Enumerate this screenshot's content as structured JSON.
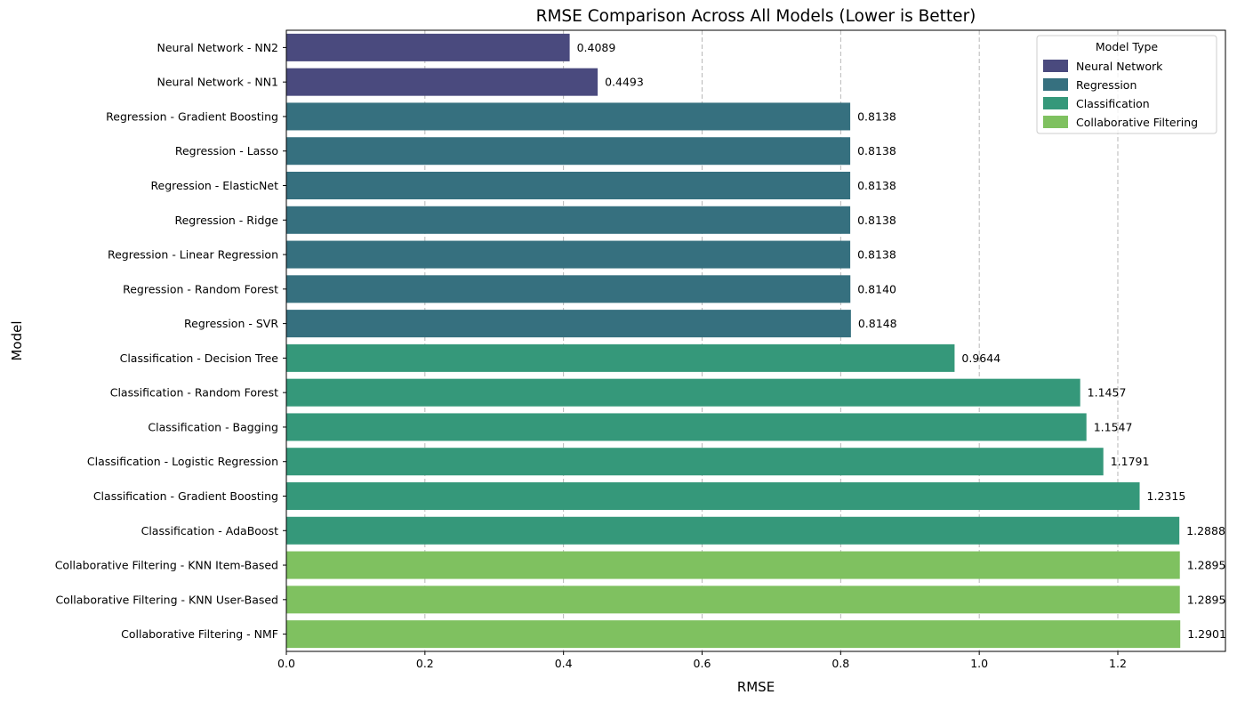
{
  "chart_data": {
    "type": "bar",
    "orientation": "horizontal",
    "title": "RMSE Comparison Across All Models (Lower is Better)",
    "xlabel": "RMSE",
    "ylabel": "Model",
    "xlim": [
      0,
      1.3553
    ],
    "xticks": [
      0.0,
      0.2,
      0.4,
      0.6,
      0.8,
      1.0,
      1.2
    ],
    "xtick_labels": [
      "0.0",
      "0.2",
      "0.4",
      "0.6",
      "0.8",
      "1.0",
      "1.2"
    ],
    "grid": "x-dashed",
    "legend": {
      "title": "Model Type",
      "position": "top-right",
      "entries": [
        {
          "label": "Neural Network",
          "color": "#4a4a7e"
        },
        {
          "label": "Regression",
          "color": "#36707f"
        },
        {
          "label": "Classification",
          "color": "#35987a"
        },
        {
          "label": "Collaborative Filtering",
          "color": "#7fc160"
        }
      ]
    },
    "categories": [
      "Neural Network - NN2",
      "Neural Network - NN1",
      "Regression - Gradient Boosting",
      "Regression - Lasso",
      "Regression - ElasticNet",
      "Regression - Ridge",
      "Regression - Linear Regression",
      "Regression - Random Forest",
      "Regression - SVR",
      "Classification - Decision Tree",
      "Classification - Random Forest",
      "Classification - Bagging",
      "Classification - Logistic Regression",
      "Classification - Gradient Boosting",
      "Classification - AdaBoost",
      "Collaborative Filtering - KNN Item-Based",
      "Collaborative Filtering - KNN User-Based",
      "Collaborative Filtering - NMF"
    ],
    "values": [
      0.4089,
      0.4493,
      0.8138,
      0.8138,
      0.8138,
      0.8138,
      0.8138,
      0.814,
      0.8148,
      0.9644,
      1.1457,
      1.1547,
      1.1791,
      1.2315,
      1.2888,
      1.2895,
      1.2895,
      1.2901
    ],
    "value_labels": [
      "0.4089",
      "0.4493",
      "0.8138",
      "0.8138",
      "0.8138",
      "0.8138",
      "0.8138",
      "0.8140",
      "0.8148",
      "0.9644",
      "1.1457",
      "1.1547",
      "1.1791",
      "1.2315",
      "1.2888",
      "1.2895",
      "1.2895",
      "1.2901"
    ],
    "groups": [
      0,
      0,
      1,
      1,
      1,
      1,
      1,
      1,
      1,
      2,
      2,
      2,
      2,
      2,
      2,
      3,
      3,
      3
    ]
  }
}
